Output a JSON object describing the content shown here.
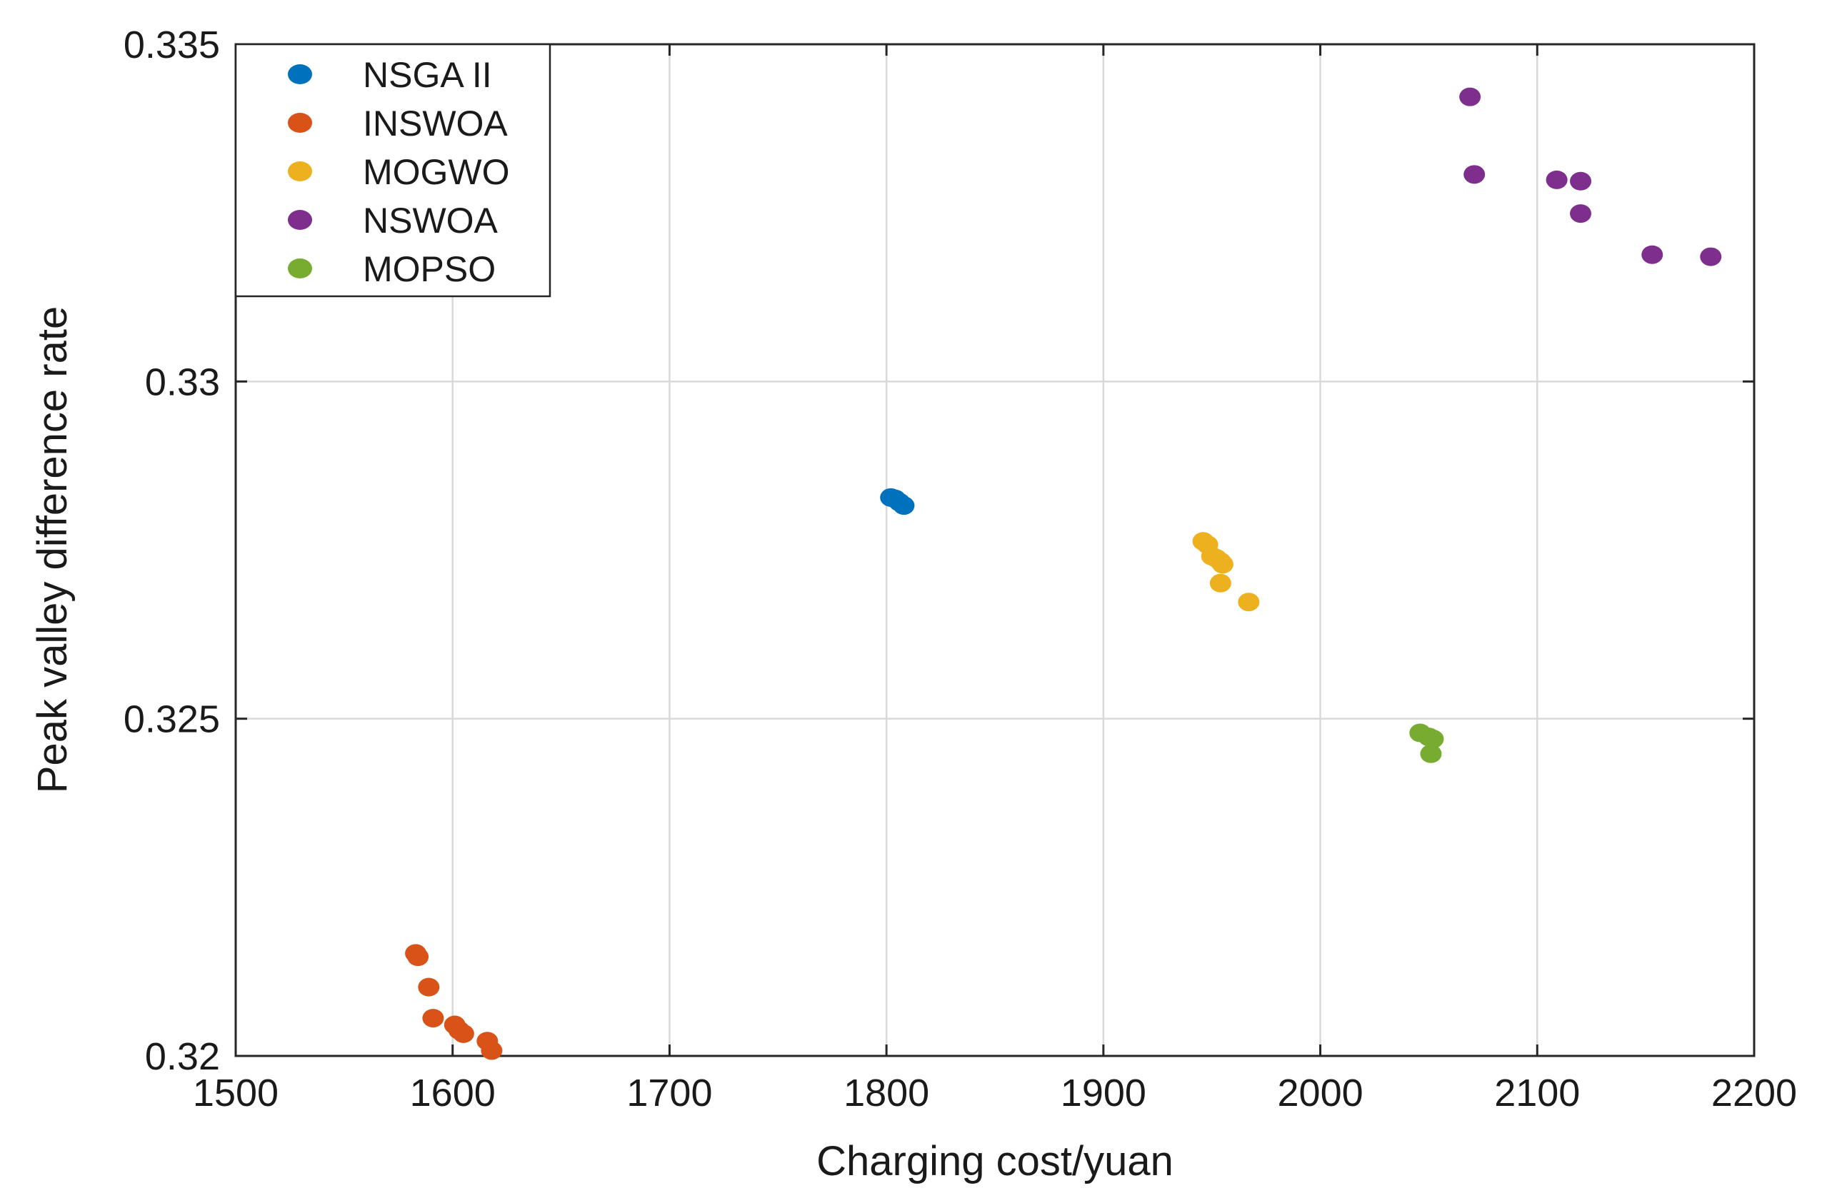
{
  "chart_data": {
    "type": "scatter",
    "title": "",
    "xlabel": "Charging cost/yuan",
    "ylabel": "Peak valley difference rate",
    "xlim": [
      1500,
      2200
    ],
    "ylim": [
      0.32,
      0.335
    ],
    "xticks": [
      1500,
      1600,
      1700,
      1800,
      1900,
      2000,
      2100,
      2200
    ],
    "xtick_labels": [
      "1500",
      "1600",
      "1700",
      "1800",
      "1900",
      "2000",
      "2100",
      "2200"
    ],
    "yticks": [
      0.32,
      0.325,
      0.33,
      0.335
    ],
    "ytick_labels": [
      "0.32",
      "0.325",
      "0.33",
      "0.335"
    ],
    "grid": true,
    "legend_position": "top-left",
    "series": [
      {
        "name": "NSGA II",
        "color": "#0072BD",
        "points": [
          [
            1802,
            0.32828
          ],
          [
            1804,
            0.32826
          ],
          [
            1806,
            0.32821
          ],
          [
            1808,
            0.32816
          ]
        ]
      },
      {
        "name": "INSWOA",
        "color": "#D95319",
        "points": [
          [
            1583,
            0.32152
          ],
          [
            1584,
            0.32147
          ],
          [
            1589,
            0.32102
          ],
          [
            1591,
            0.32056
          ],
          [
            1601,
            0.32046
          ],
          [
            1603,
            0.32038
          ],
          [
            1605,
            0.32033
          ],
          [
            1616,
            0.32022
          ],
          [
            1618,
            0.32008
          ]
        ]
      },
      {
        "name": "MOGWO",
        "color": "#EDB120",
        "points": [
          [
            1946,
            0.32763
          ],
          [
            1948,
            0.32758
          ],
          [
            1950,
            0.32741
          ],
          [
            1952,
            0.32738
          ],
          [
            1954,
            0.32733
          ],
          [
            1955,
            0.32729
          ],
          [
            1954,
            0.32701
          ],
          [
            1967,
            0.32673
          ]
        ]
      },
      {
        "name": "NSWOA",
        "color": "#7E2F8E",
        "points": [
          [
            2069,
            0.33422
          ],
          [
            2071,
            0.33307
          ],
          [
            2109,
            0.33299
          ],
          [
            2120,
            0.33297
          ],
          [
            2120,
            0.33249
          ],
          [
            2153,
            0.33188
          ],
          [
            2180,
            0.33185
          ]
        ]
      },
      {
        "name": "MOPSO",
        "color": "#77AC30",
        "points": [
          [
            2046,
            0.32479
          ],
          [
            2050,
            0.32473
          ],
          [
            2052,
            0.3247
          ],
          [
            2051,
            0.32448
          ]
        ]
      }
    ]
  }
}
